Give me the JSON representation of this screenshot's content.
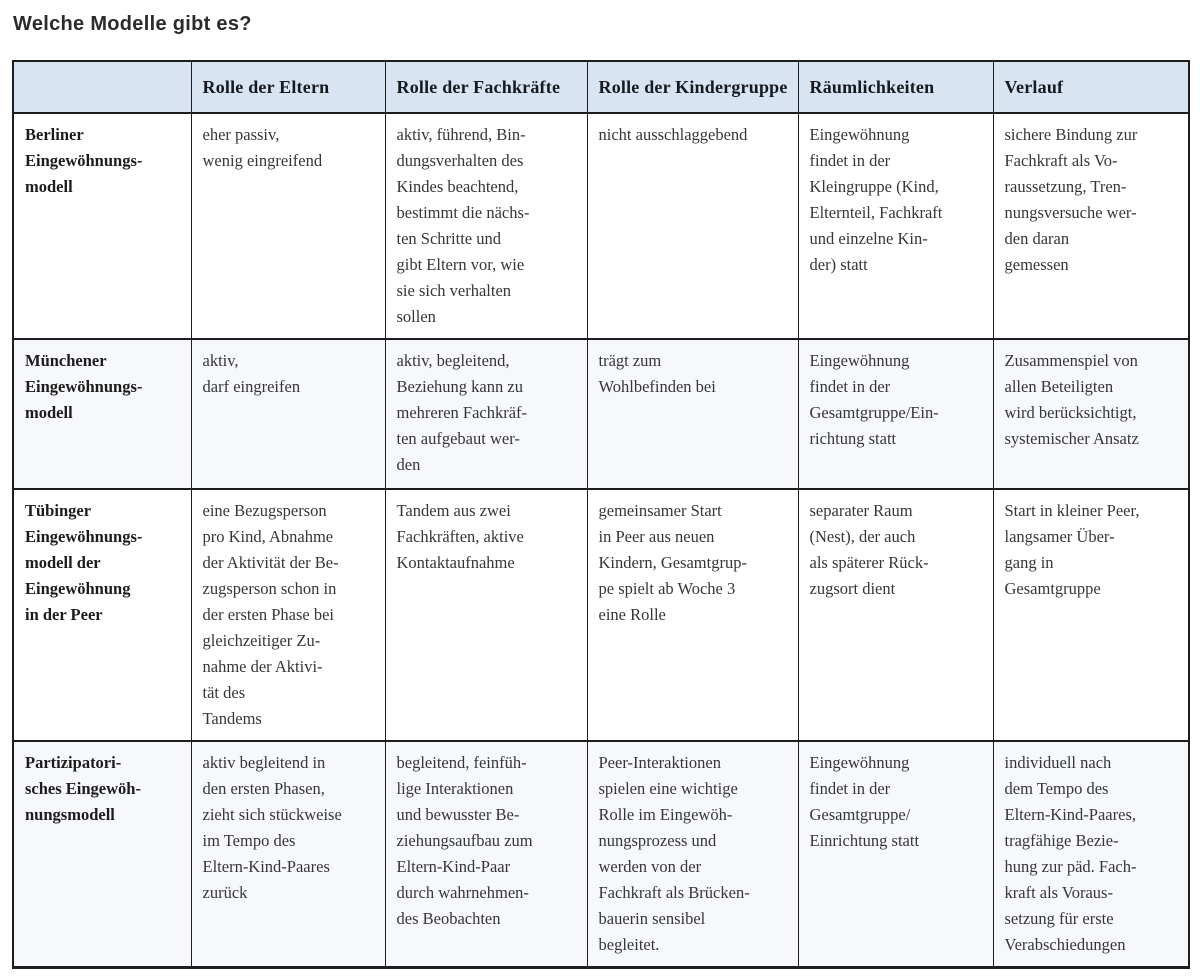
{
  "page_title": "Welche Modelle gibt es?",
  "colors": {
    "header_bg": "#d9e4f3",
    "tinted_row_bg": "#f6f8fb",
    "border": "#1d1d1d",
    "body_text": "#363636"
  },
  "table": {
    "columns": [
      "",
      "Rolle der Eltern",
      "Rolle der Fachkräfte",
      "Rolle der Kindergruppe",
      "Räumlichkeiten",
      "Verlauf"
    ],
    "rows": [
      {
        "model": "Berliner\nEingewöhnungs-\nmodell",
        "eltern": "eher passiv,\nwenig eingreifend",
        "fachkraefte": "aktiv, führend, Bin-\ndungsverhalten des\nKindes beachtend,\nbestimmt die nächs-\nten Schritte und\ngibt Eltern vor, wie\nsie sich verhalten\nsollen",
        "kindergruppe": "nicht ausschlaggebend",
        "raeumlichkeiten": "Eingewöhnung\nfindet in der\nKleingruppe (Kind,\nElternteil, Fachkraft\nund einzelne Kin-\nder) statt",
        "verlauf": "sichere Bindung zur\nFachkraft als Vo-\nraussetzung, Tren-\nnungsversuche wer-\nden daran\ngemessen"
      },
      {
        "model": "Münchener\nEingewöhnungs-\nmodell",
        "eltern": "aktiv,\ndarf eingreifen",
        "fachkraefte": "aktiv, begleitend,\nBeziehung kann zu\nmehreren Fachkräf-\nten aufgebaut wer-\nden",
        "kindergruppe": "trägt zum\nWohlbefinden bei",
        "raeumlichkeiten": "Eingewöhnung\nfindet in der\nGesamtgruppe/Ein-\nrichtung statt",
        "verlauf": "Zusammenspiel von\nallen Beteiligten\nwird berücksichtigt,\nsystemischer Ansatz"
      },
      {
        "model": "Tübinger\nEingewöhnungs-\nmodell der\nEingewöhnung\nin der Peer",
        "eltern": "eine Bezugsperson\npro Kind, Abnahme\nder Aktivität der Be-\nzugsperson schon in\nder ersten Phase bei\ngleichzeitiger Zu-\nnahme der Aktivi-\ntät des\nTandems",
        "fachkraefte": "Tandem aus zwei\nFachkräften, aktive\nKontaktaufnahme",
        "kindergruppe": "gemeinsamer Start\nin Peer aus neuen\nKindern, Gesamtgrup-\npe spielt ab Woche 3\neine Rolle",
        "raeumlichkeiten": "separater Raum\n(Nest), der auch\nals späterer Rück-\nzugsort dient",
        "verlauf": "Start in kleiner Peer,\nlangsamer Über-\ngang in\nGesamtgruppe"
      },
      {
        "model": "Partizipatori-\nsches Eingewöh-\nnungsmodell",
        "eltern": "aktiv begleitend in\nden ersten Phasen,\nzieht sich stückweise\nim Tempo des\nEltern-Kind-Paares\nzurück",
        "fachkraefte": "begleitend, feinfüh-\nlige Interaktionen\nund bewusster Be-\nziehungsaufbau zum\nEltern-Kind-Paar\ndurch wahrnehmen-\ndes Beobachten",
        "kindergruppe": "Peer-Interaktionen\nspielen eine wichtige\nRolle im Eingewöh-\nnungsprozess und\nwerden von der\nFachkraft als Brücken-\nbauerin sensibel\nbegleitet.",
        "raeumlichkeiten": "Eingewöhnung\nfindet in der\nGesamtgruppe/\nEinrichtung statt",
        "verlauf": "individuell nach\ndem Tempo des\nEltern-Kind-Paares,\ntragfähige Bezie-\nhung zur päd. Fach-\nkraft als Voraus-\nsetzung für erste\nVerabschiedungen"
      }
    ]
  }
}
